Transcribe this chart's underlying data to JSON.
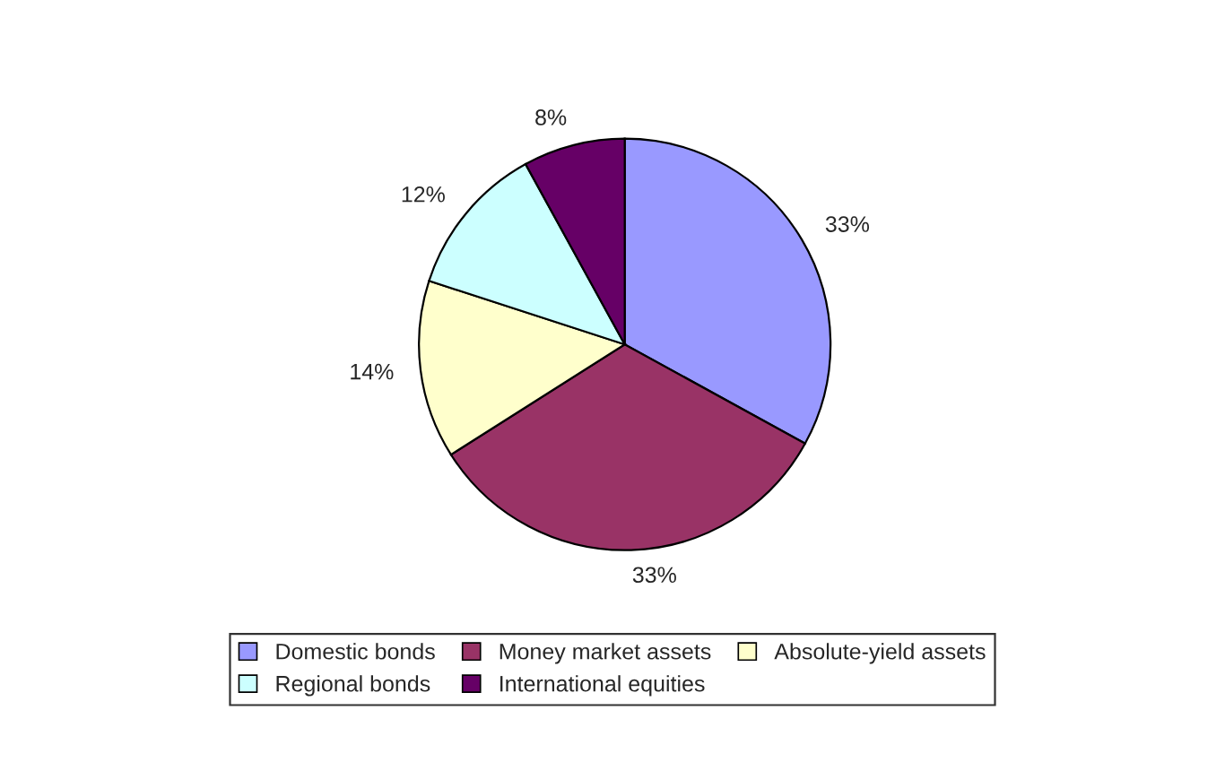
{
  "chart_data": {
    "type": "pie",
    "categories": [
      "Domestic bonds",
      "Money market assets",
      "Absolute-yield assets",
      "Regional bonds",
      "International equities"
    ],
    "values": [
      33,
      33,
      14,
      12,
      8
    ],
    "value_labels": [
      "33%",
      "33%",
      "14%",
      "12%",
      "8%"
    ],
    "colors": [
      "#9999ff",
      "#993366",
      "#ffffcc",
      "#ccffff",
      "#660066"
    ],
    "legend": "bottom"
  }
}
